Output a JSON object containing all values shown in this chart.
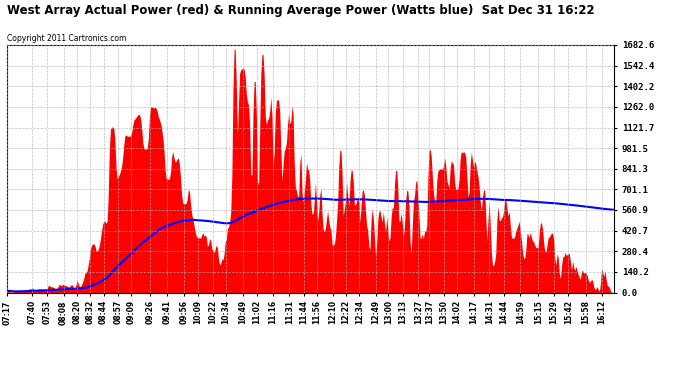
{
  "title": "West Array Actual Power (red) & Running Average Power (Watts blue)  Sat Dec 31 16:22",
  "copyright": "Copyright 2011 Cartronics.com",
  "ymax": 1682.6,
  "ymin": 0.0,
  "ytick_labels": [
    "1682.6",
    "1542.4",
    "1402.2",
    "1262.0",
    "1121.7",
    "981.5",
    "841.3",
    "701.1",
    "560.9",
    "420.7",
    "280.4",
    "140.2",
    "0.0"
  ],
  "background_color": "#ffffff",
  "plot_bg_color": "#ffffff",
  "grid_color": "#b0b0b0",
  "bar_color": "red",
  "line_color": "blue",
  "xtick_labels": [
    "07:17",
    "07:40",
    "07:53",
    "08:08",
    "08:20",
    "08:32",
    "08:44",
    "08:57",
    "09:09",
    "09:26",
    "09:41",
    "09:56",
    "10:09",
    "10:22",
    "10:34",
    "10:49",
    "11:02",
    "11:16",
    "11:31",
    "11:44",
    "11:56",
    "12:10",
    "12:22",
    "12:34",
    "12:49",
    "13:00",
    "13:13",
    "13:27",
    "13:37",
    "13:50",
    "14:02",
    "14:17",
    "14:31",
    "14:44",
    "14:59",
    "15:15",
    "15:29",
    "15:42",
    "15:58",
    "16:12"
  ]
}
